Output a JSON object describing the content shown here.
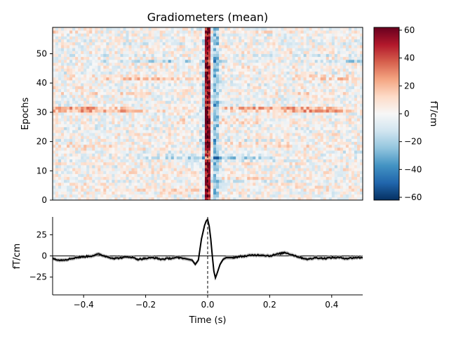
{
  "chart_data": [
    {
      "type": "heatmap",
      "title": "Gradiometers (mean)",
      "ylabel": "Epochs",
      "x_range_s": [
        -0.5,
        0.5
      ],
      "y_range": [
        0,
        59
      ],
      "y_ticks": [
        0,
        10,
        20,
        30,
        40,
        50
      ],
      "y_tick_labels": [
        "0",
        "10",
        "20",
        "30",
        "40",
        "50"
      ],
      "n_epochs": 59,
      "n_time_bins": 110,
      "colormap": "RdBu_r",
      "colorbar": {
        "label": "fT/cm",
        "range": [
          -62,
          62
        ],
        "ticks": [
          -60,
          -40,
          -20,
          0,
          20,
          40,
          60
        ],
        "tick_labels": [
          "−60",
          "−40",
          "−20",
          "0",
          "20",
          "40",
          "60"
        ]
      },
      "vline_x": 0.0,
      "response_peak_positive_t": 0.0,
      "response_negative_flank_t": [
        -0.015,
        0.025
      ],
      "strong_rows": [
        31,
        30,
        14,
        41,
        47
      ],
      "strong_row_note_values": [
        25,
        22,
        -20,
        15,
        -18
      ]
    },
    {
      "type": "line",
      "xlabel": "Time (s)",
      "ylabel": "fT/cm",
      "x_range": [
        -0.5,
        0.5
      ],
      "y_range": [
        -46,
        46
      ],
      "x_ticks": [
        -0.4,
        -0.2,
        0.0,
        0.2,
        0.4
      ],
      "x_tick_labels": [
        "−0.4",
        "−0.2",
        "0.0",
        "0.2",
        "0.4"
      ],
      "y_ticks": [
        -25,
        0,
        25
      ],
      "y_tick_labels": [
        "−25",
        "0",
        "25"
      ],
      "zero_line": true,
      "vline_x": 0.0,
      "series": [
        {
          "color": "#000000",
          "x": [
            -0.5,
            -0.475,
            -0.45,
            -0.425,
            -0.4,
            -0.375,
            -0.35,
            -0.325,
            -0.3,
            -0.275,
            -0.25,
            -0.225,
            -0.2,
            -0.175,
            -0.15,
            -0.125,
            -0.1,
            -0.075,
            -0.05,
            -0.04,
            -0.03,
            -0.02,
            -0.01,
            -0.005,
            0.0,
            0.005,
            0.01,
            0.015,
            0.02,
            0.025,
            0.03,
            0.04,
            0.05,
            0.06,
            0.08,
            0.1,
            0.125,
            0.15,
            0.175,
            0.2,
            0.225,
            0.25,
            0.275,
            0.3,
            0.325,
            0.35,
            0.375,
            0.4,
            0.425,
            0.45,
            0.475,
            0.5
          ],
          "y": [
            -3,
            -5,
            -4,
            -2,
            -1,
            0,
            2,
            -1,
            -3,
            -2,
            -1,
            -4,
            -3,
            -2,
            -4,
            -3,
            -2,
            -3,
            -5,
            -10,
            -5,
            20,
            36,
            41,
            43,
            35,
            20,
            0,
            -18,
            -26,
            -21,
            -10,
            -4,
            -2,
            -2,
            -1,
            0,
            1,
            1,
            0,
            2,
            4,
            1,
            -2,
            -4,
            -2,
            -3,
            -2,
            -2,
            -3,
            -2,
            -2
          ]
        }
      ],
      "band_halfwidth": 2.2
    }
  ]
}
